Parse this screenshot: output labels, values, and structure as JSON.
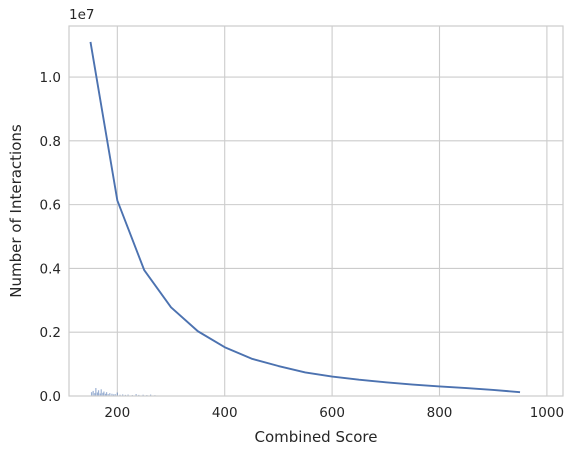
{
  "chart_data": {
    "type": "line",
    "xlabel": "Combined Score",
    "ylabel": "Number of Interactions",
    "y_offset_text": "1e7",
    "xlim": [
      110,
      1030
    ],
    "ylim": [
      0,
      11600000
    ],
    "x_ticks": [
      {
        "value": 200,
        "label": "200"
      },
      {
        "value": 400,
        "label": "400"
      },
      {
        "value": 600,
        "label": "600"
      },
      {
        "value": 800,
        "label": "800"
      },
      {
        "value": 1000,
        "label": "1000"
      }
    ],
    "y_ticks": [
      {
        "value": 0,
        "label": "0.0"
      },
      {
        "value": 2000000,
        "label": "0.2"
      },
      {
        "value": 4000000,
        "label": "0.4"
      },
      {
        "value": 6000000,
        "label": "0.6"
      },
      {
        "value": 8000000,
        "label": "0.8"
      },
      {
        "value": 10000000,
        "label": "1.0"
      }
    ],
    "grid": true,
    "series": [
      {
        "color": "#4c72b0",
        "x": [
          150,
          200,
          250,
          300,
          350,
          400,
          450,
          500,
          550,
          600,
          650,
          700,
          750,
          800,
          850,
          900,
          950
        ],
        "y": [
          11100000,
          6130000,
          3950000,
          2780000,
          2030000,
          1530000,
          1170000,
          940000,
          740000,
          610000,
          510000,
          430000,
          360000,
          300000,
          250000,
          190000,
          120000
        ]
      }
    ],
    "histogram": {
      "color": "#4c72b0",
      "x": [
        152,
        155,
        158,
        160,
        163,
        165,
        168,
        170,
        173,
        175,
        178,
        180,
        183,
        186,
        190,
        193,
        196,
        200,
        205,
        210,
        215,
        220,
        228,
        235,
        240,
        248,
        255,
        262,
        270
      ],
      "y": [
        120000,
        160000,
        90000,
        250000,
        110000,
        180000,
        80000,
        210000,
        100000,
        140000,
        70000,
        120000,
        60000,
        90000,
        70000,
        50000,
        60000,
        110000,
        40000,
        50000,
        35000,
        45000,
        30000,
        60000,
        35000,
        40000,
        30000,
        45000,
        25000
      ]
    }
  }
}
